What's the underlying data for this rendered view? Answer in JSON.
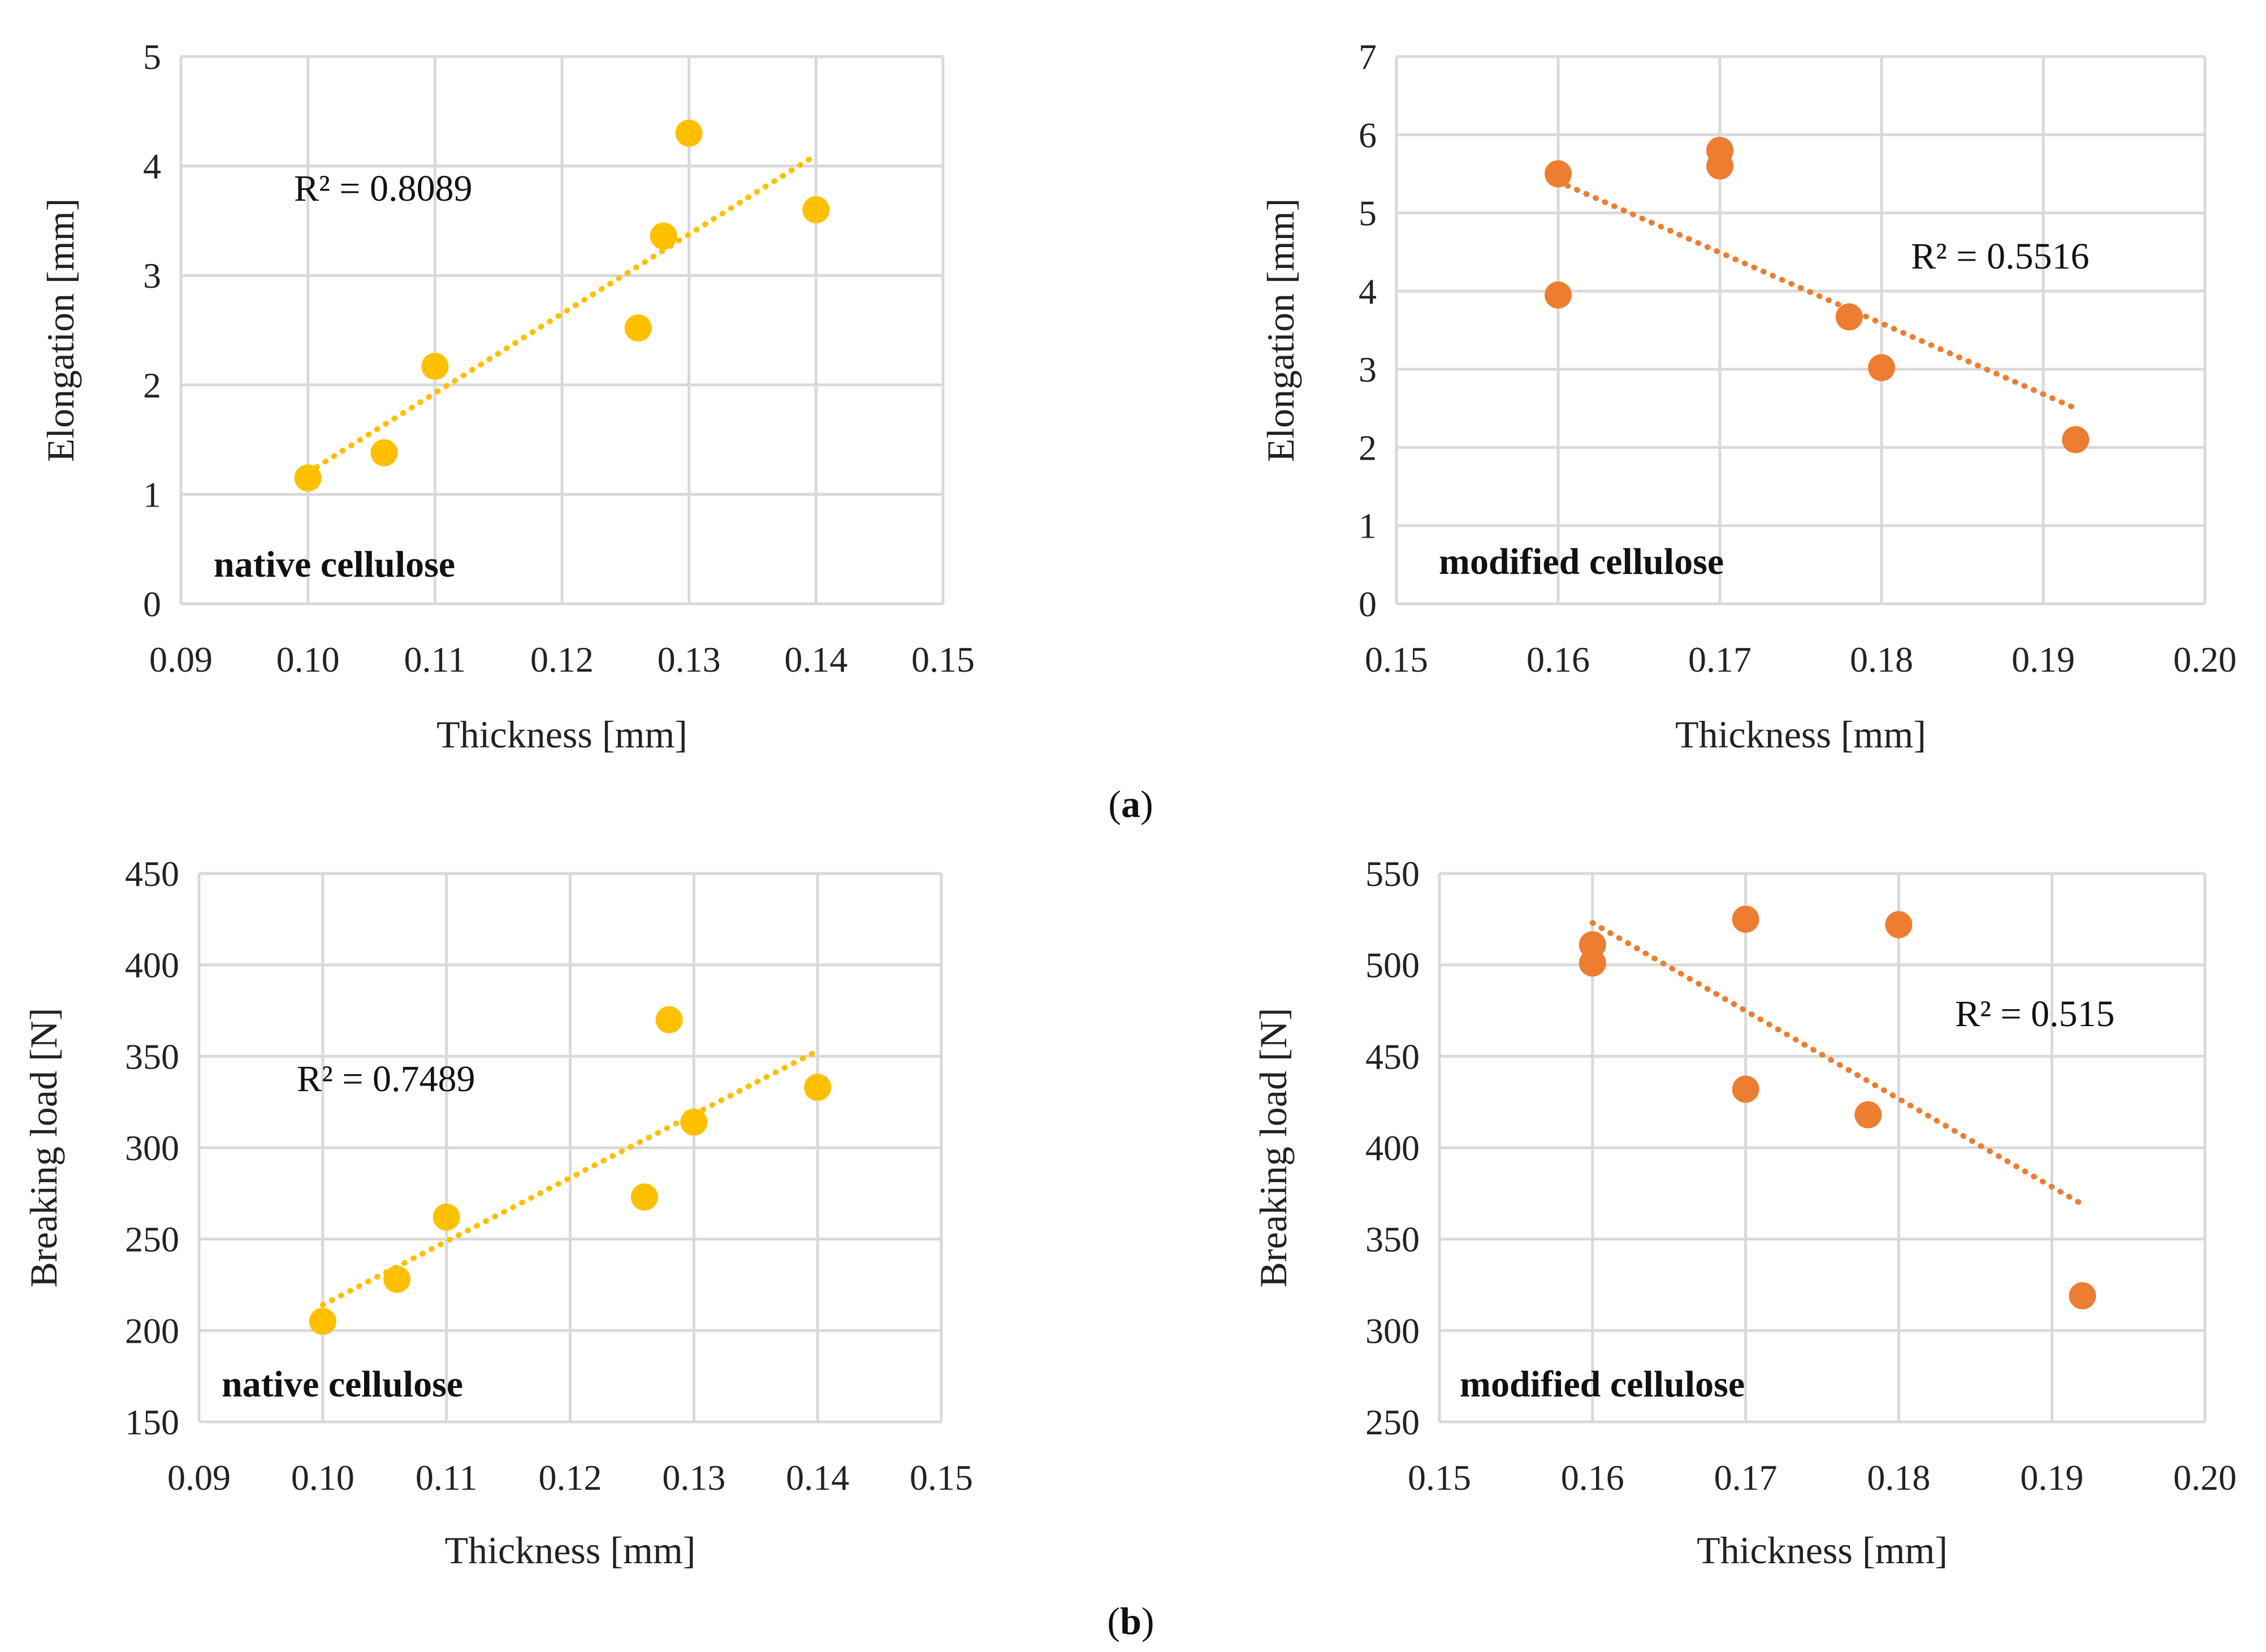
{
  "captions": {
    "a": "a",
    "b": "b"
  },
  "colors": {
    "native": "#FFC000",
    "modified": "#ED7D31",
    "grid": "#D9D9D9"
  },
  "chart_data": [
    {
      "id": "a-native",
      "type": "scatter",
      "xlabel": "Thickness [mm]",
      "ylabel": "Elongation [mm]",
      "xlim": [
        0.09,
        0.15
      ],
      "ylim": [
        0,
        5
      ],
      "xticks": [
        0.09,
        0.1,
        0.11,
        0.12,
        0.13,
        0.14,
        0.15
      ],
      "yticks": [
        0,
        1,
        2,
        3,
        4,
        5
      ],
      "xdecimals": 2,
      "ydecimals": 0,
      "x": [
        0.1,
        0.106,
        0.11,
        0.126,
        0.128,
        0.13,
        0.14
      ],
      "y": [
        1.15,
        1.38,
        2.17,
        2.52,
        3.36,
        4.3,
        3.6
      ],
      "trend": [
        [
          0.1,
          1.2
        ],
        [
          0.14,
          4.1
        ]
      ],
      "r2_label": "R² = 0.8089",
      "label": "native cellulose",
      "color": "#FFC000"
    },
    {
      "id": "a-modified",
      "type": "scatter",
      "xlabel": "Thickness [mm]",
      "ylabel": "Elongation [mm]",
      "xlim": [
        0.15,
        0.2
      ],
      "ylim": [
        0,
        7
      ],
      "xticks": [
        0.15,
        0.16,
        0.17,
        0.18,
        0.19,
        0.2
      ],
      "yticks": [
        0,
        1,
        2,
        3,
        4,
        5,
        6,
        7
      ],
      "xdecimals": 2,
      "ydecimals": 0,
      "x": [
        0.16,
        0.16,
        0.17,
        0.17,
        0.178,
        0.18,
        0.192
      ],
      "y": [
        5.5,
        3.95,
        5.8,
        5.6,
        3.67,
        3.02,
        2.1
      ],
      "trend": [
        [
          0.16,
          5.4
        ],
        [
          0.192,
          2.5
        ]
      ],
      "r2_label": "R² = 0.5516",
      "label": "modified cellulose",
      "color": "#ED7D31"
    },
    {
      "id": "b-native",
      "type": "scatter",
      "xlabel": "Thickness [mm]",
      "ylabel": "Breaking load [N]",
      "xlim": [
        0.09,
        0.15
      ],
      "ylim": [
        150,
        450
      ],
      "xticks": [
        0.09,
        0.1,
        0.11,
        0.12,
        0.13,
        0.14,
        0.15
      ],
      "yticks": [
        150,
        200,
        250,
        300,
        350,
        400,
        450
      ],
      "xdecimals": 2,
      "ydecimals": 0,
      "x": [
        0.1,
        0.106,
        0.11,
        0.126,
        0.128,
        0.13,
        0.14
      ],
      "y": [
        205,
        228,
        262,
        273,
        370,
        314,
        333
      ],
      "trend": [
        [
          0.1,
          214
        ],
        [
          0.14,
          353
        ]
      ],
      "r2_label": "R² = 0.7489",
      "label": "native cellulose",
      "color": "#FFC000"
    },
    {
      "id": "b-modified",
      "type": "scatter",
      "xlabel": "Thickness [mm]",
      "ylabel": "Breaking load [N]",
      "xlim": [
        0.15,
        0.2
      ],
      "ylim": [
        250,
        550
      ],
      "xticks": [
        0.15,
        0.16,
        0.17,
        0.18,
        0.19,
        0.2
      ],
      "yticks": [
        250,
        300,
        350,
        400,
        450,
        500,
        550
      ],
      "xdecimals": 2,
      "ydecimals": 0,
      "x": [
        0.16,
        0.16,
        0.17,
        0.17,
        0.178,
        0.18,
        0.192
      ],
      "y": [
        511,
        501,
        525,
        432,
        418,
        522,
        319
      ],
      "trend": [
        [
          0.16,
          523
        ],
        [
          0.192,
          369
        ]
      ],
      "r2_label": "R² = 0.515",
      "label": "modified cellulose",
      "color": "#ED7D31"
    }
  ]
}
